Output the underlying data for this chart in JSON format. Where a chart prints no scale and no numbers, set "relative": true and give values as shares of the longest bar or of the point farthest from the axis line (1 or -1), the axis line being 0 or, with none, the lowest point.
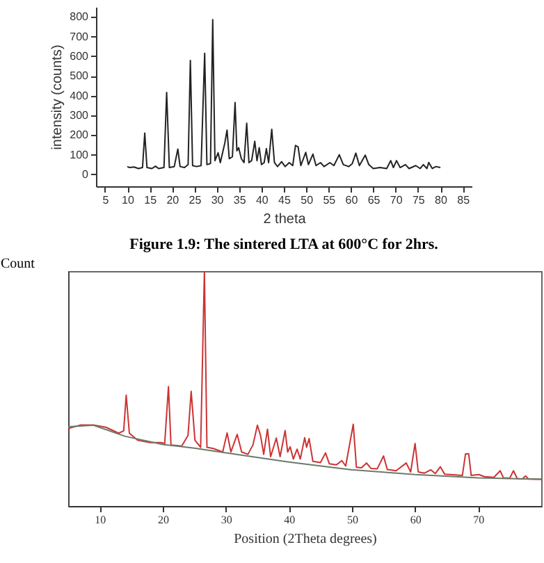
{
  "chart_data": [
    {
      "type": "line",
      "xlabel": "2 theta",
      "ylabel": "intensity (counts)",
      "annotations": [
        "Figure 1.9: The sintered LTA at 600°C for 2hrs."
      ],
      "xlim": [
        3,
        87
      ],
      "xticks": [
        5,
        10,
        15,
        20,
        25,
        30,
        35,
        40,
        45,
        50,
        55,
        60,
        65,
        70,
        75,
        80,
        85
      ],
      "ylim": [
        -60,
        850
      ],
      "yticks": [
        0,
        100,
        200,
        300,
        400,
        500,
        600,
        700,
        800
      ],
      "series": [
        {
          "color": "#222222",
          "x": [
            10,
            10.5,
            11.5,
            12.5,
            13.4,
            13.9,
            14.4,
            15.5,
            16.3,
            17,
            18.2,
            18.8,
            19.4,
            20.5,
            21.3,
            21.8,
            22.8,
            23.6,
            24.1,
            24.6,
            25.5,
            26.5,
            27.3,
            27.8,
            28.6,
            29.1,
            29.6,
            30.3,
            30.8,
            31.8,
            32.3,
            32.8,
            33.5,
            34.1,
            34.5,
            34.9,
            35.5,
            36.1,
            36.7,
            37.2,
            37.8,
            38.5,
            39,
            39.5,
            40,
            40.6,
            41.1,
            41.6,
            42.3,
            42.9,
            43.6,
            44.5,
            45.3,
            46.2,
            47,
            47.6,
            48.2,
            48.8,
            49.9,
            50.5,
            51.5,
            52.2,
            53.2,
            54,
            55.3,
            56.2,
            57.4,
            58.3,
            59.5,
            60.3,
            61.1,
            61.9,
            63.2,
            64,
            65,
            66.5,
            68,
            68.9,
            69.5,
            70.2,
            71,
            72.2,
            73,
            74.5,
            75.5,
            76.2,
            77,
            77.4,
            78.2,
            79,
            80
          ],
          "values": [
            40,
            35,
            38,
            30,
            35,
            210,
            35,
            30,
            42,
            30,
            35,
            416,
            35,
            40,
            129,
            40,
            35,
            50,
            578,
            45,
            40,
            45,
            615,
            50,
            55,
            786,
            70,
            110,
            60,
            159,
            225,
            80,
            90,
            365,
            120,
            136,
            80,
            60,
            260,
            60,
            70,
            168,
            70,
            136,
            50,
            60,
            131,
            60,
            229,
            60,
            40,
            65,
            40,
            60,
            45,
            147,
            140,
            45,
            112,
            50,
            103,
            45,
            60,
            40,
            60,
            45,
            100,
            50,
            40,
            55,
            108,
            45,
            98,
            50,
            30,
            35,
            30,
            70,
            35,
            70,
            35,
            50,
            30,
            45,
            30,
            50,
            30,
            61,
            30,
            40,
            35
          ]
        }
      ]
    },
    {
      "type": "line",
      "xlabel": "Position (2Theta degrees)",
      "ylabel": "Count",
      "relative": true,
      "xlim": [
        5,
        80
      ],
      "xticks": [
        10,
        20,
        30,
        40,
        50,
        60,
        70
      ],
      "series": [
        {
          "color": "#cc3333",
          "x": [
            5,
            7,
            9,
            11,
            13,
            13.8,
            14.2,
            14.7,
            16,
            18,
            19.8,
            20.3,
            20.9,
            21.3,
            23,
            24,
            24.5,
            25.1,
            26,
            26.6,
            27,
            28,
            29.5,
            30.2,
            30.8,
            31.8,
            32.5,
            33.5,
            34.3,
            35,
            35.5,
            36,
            36.6,
            37.1,
            38,
            38.6,
            39.4,
            39.8,
            40.2,
            40.7,
            41.3,
            41.8,
            42.5,
            42.8,
            43.2,
            43.8,
            45,
            45.8,
            46.4,
            47.5,
            48.4,
            49,
            50.2,
            50.7,
            51.5,
            52.3,
            53,
            54,
            55,
            55.6,
            57,
            58.6,
            59.3,
            60,
            60.5,
            61.5,
            62.5,
            63.2,
            64,
            64.7,
            66,
            67.5,
            68,
            68.5,
            68.9,
            70.1,
            71,
            72.5,
            73.5,
            74,
            75,
            75.6,
            76.2,
            77,
            77.5,
            78,
            79,
            80
          ],
          "values": [
            0.33,
            0.345,
            0.345,
            0.335,
            0.31,
            0.32,
            0.472,
            0.31,
            0.28,
            0.27,
            0.27,
            0.265,
            0.508,
            0.26,
            0.255,
            0.3,
            0.488,
            0.28,
            0.25,
            1.0,
            0.25,
            0.245,
            0.23,
            0.311,
            0.23,
            0.305,
            0.23,
            0.22,
            0.26,
            0.344,
            0.3,
            0.22,
            0.327,
            0.21,
            0.289,
            0.21,
            0.321,
            0.23,
            0.252,
            0.2,
            0.242,
            0.2,
            0.291,
            0.25,
            0.287,
            0.19,
            0.185,
            0.226,
            0.18,
            0.175,
            0.193,
            0.17,
            0.348,
            0.165,
            0.163,
            0.183,
            0.16,
            0.158,
            0.213,
            0.155,
            0.15,
            0.183,
            0.145,
            0.266,
            0.145,
            0.14,
            0.154,
            0.138,
            0.167,
            0.135,
            0.133,
            0.13,
            0.222,
            0.222,
            0.13,
            0.134,
            0.125,
            0.122,
            0.15,
            0.12,
            0.118,
            0.15,
            0.117,
            0.115,
            0.128,
            0.115,
            0.114,
            0.114
          ]
        },
        {
          "color": "#6b7a6b",
          "x": [
            5,
            9,
            14,
            20,
            25,
            30,
            40,
            50,
            60,
            70,
            80
          ],
          "values": [
            0.337,
            0.344,
            0.297,
            0.262,
            0.246,
            0.226,
            0.187,
            0.154,
            0.134,
            0.12,
            0.114
          ]
        }
      ]
    }
  ]
}
